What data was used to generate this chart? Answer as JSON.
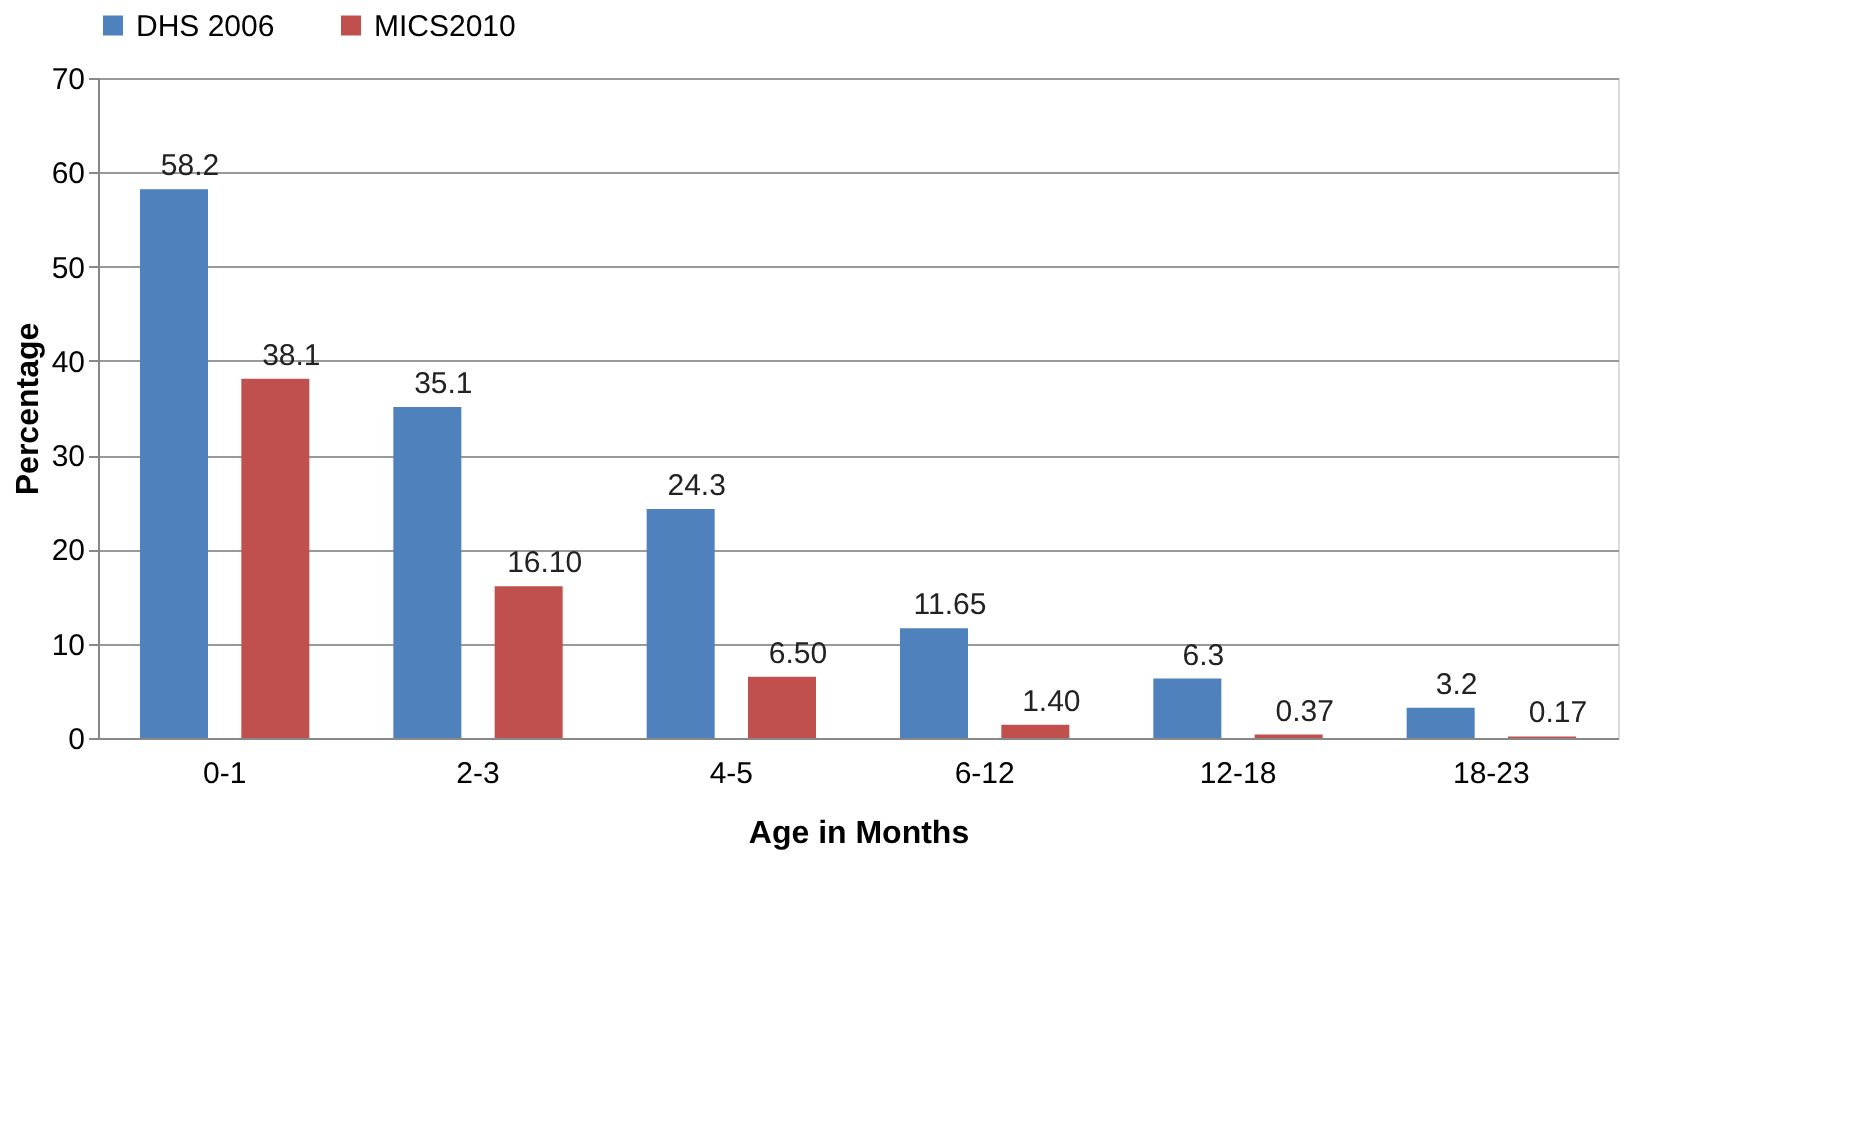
{
  "chart_data": {
    "type": "bar",
    "xlabel": "Age in Months",
    "ylabel": "Percentage",
    "categories": [
      "0-1",
      "2-3",
      "4-5",
      "6-12",
      "12-18",
      "18-23"
    ],
    "series": [
      {
        "name": "DHS 2006",
        "color": "#4f81bd",
        "values": [
          58.2,
          35.1,
          24.3,
          11.65,
          6.3,
          3.2
        ],
        "value_labels": [
          "58.2",
          "35.1",
          "24.3",
          "11.65",
          "6.3",
          "3.2"
        ]
      },
      {
        "name": "MICS2010",
        "color": "#c0504d",
        "values": [
          38.1,
          16.1,
          6.5,
          1.4,
          0.37,
          0.17
        ],
        "value_labels": [
          "38.1",
          "16.10",
          "6.50",
          "1.40",
          "0.37",
          "0.17"
        ]
      }
    ],
    "ylim": [
      0,
      70
    ],
    "yticks": [
      0,
      10,
      20,
      30,
      40,
      50,
      60,
      70
    ],
    "grid": "y",
    "legend": "top"
  }
}
